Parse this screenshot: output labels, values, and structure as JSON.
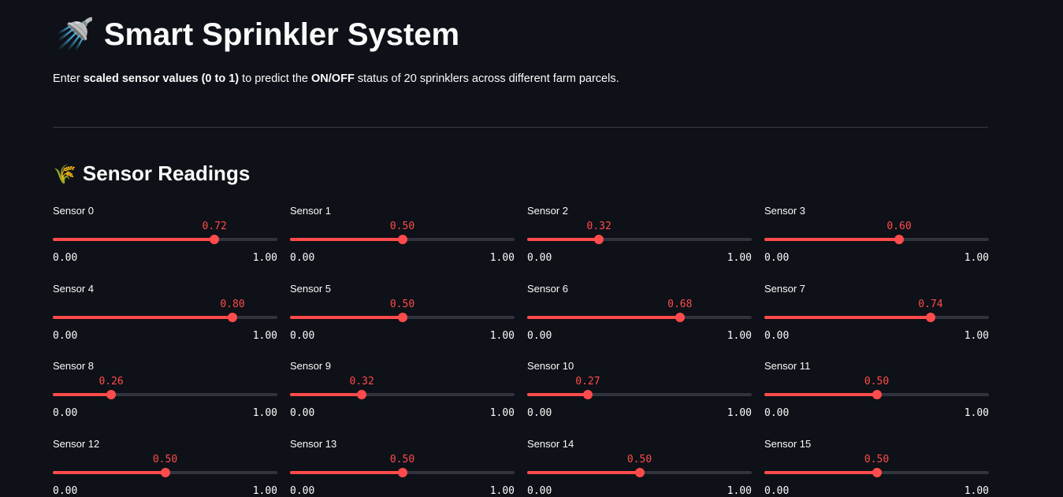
{
  "header": {
    "icon": "🚿",
    "title": "Smart Sprinkler System",
    "description": [
      {
        "text": "Enter ",
        "bold": false
      },
      {
        "text": "scaled sensor values (0 to 1)",
        "bold": true
      },
      {
        "text": " to predict the ",
        "bold": false
      },
      {
        "text": "ON/OFF",
        "bold": true
      },
      {
        "text": " status of 20 sprinklers across different farm parcels.",
        "bold": false
      }
    ]
  },
  "section": {
    "icon": "🌾",
    "title": "Sensor Readings"
  },
  "sliders": [
    {
      "label": "Sensor 0",
      "value": {
        "value": 0.72,
        "label": "0.72"
      },
      "min": {
        "value": 0,
        "label": "0.00"
      },
      "max": {
        "value": 1,
        "label": "1.00"
      }
    },
    {
      "label": "Sensor 1",
      "value": {
        "value": 0.5,
        "label": "0.50"
      },
      "min": {
        "value": 0,
        "label": "0.00"
      },
      "max": {
        "value": 1,
        "label": "1.00"
      }
    },
    {
      "label": "Sensor 2",
      "value": {
        "value": 0.32,
        "label": "0.32"
      },
      "min": {
        "value": 0,
        "label": "0.00"
      },
      "max": {
        "value": 1,
        "label": "1.00"
      }
    },
    {
      "label": "Sensor 3",
      "value": {
        "value": 0.6,
        "label": "0.60"
      },
      "min": {
        "value": 0,
        "label": "0.00"
      },
      "max": {
        "value": 1,
        "label": "1.00"
      }
    },
    {
      "label": "Sensor 4",
      "value": {
        "value": 0.8,
        "label": "0.80"
      },
      "min": {
        "value": 0,
        "label": "0.00"
      },
      "max": {
        "value": 1,
        "label": "1.00"
      }
    },
    {
      "label": "Sensor 5",
      "value": {
        "value": 0.5,
        "label": "0.50"
      },
      "min": {
        "value": 0,
        "label": "0.00"
      },
      "max": {
        "value": 1,
        "label": "1.00"
      }
    },
    {
      "label": "Sensor 6",
      "value": {
        "value": 0.68,
        "label": "0.68"
      },
      "min": {
        "value": 0,
        "label": "0.00"
      },
      "max": {
        "value": 1,
        "label": "1.00"
      }
    },
    {
      "label": "Sensor 7",
      "value": {
        "value": 0.74,
        "label": "0.74"
      },
      "min": {
        "value": 0,
        "label": "0.00"
      },
      "max": {
        "value": 1,
        "label": "1.00"
      }
    },
    {
      "label": "Sensor 8",
      "value": {
        "value": 0.26,
        "label": "0.26"
      },
      "min": {
        "value": 0,
        "label": "0.00"
      },
      "max": {
        "value": 1,
        "label": "1.00"
      }
    },
    {
      "label": "Sensor 9",
      "value": {
        "value": 0.32,
        "label": "0.32"
      },
      "min": {
        "value": 0,
        "label": "0.00"
      },
      "max": {
        "value": 1,
        "label": "1.00"
      }
    },
    {
      "label": "Sensor 10",
      "value": {
        "value": 0.27,
        "label": "0.27"
      },
      "min": {
        "value": 0,
        "label": "0.00"
      },
      "max": {
        "value": 1,
        "label": "1.00"
      }
    },
    {
      "label": "Sensor 11",
      "value": {
        "value": 0.5,
        "label": "0.50"
      },
      "min": {
        "value": 0,
        "label": "0.00"
      },
      "max": {
        "value": 1,
        "label": "1.00"
      }
    },
    {
      "label": "Sensor 12",
      "value": {
        "value": 0.5,
        "label": "0.50"
      },
      "min": {
        "value": 0,
        "label": "0.00"
      },
      "max": {
        "value": 1,
        "label": "1.00"
      }
    },
    {
      "label": "Sensor 13",
      "value": {
        "value": 0.5,
        "label": "0.50"
      },
      "min": {
        "value": 0,
        "label": "0.00"
      },
      "max": {
        "value": 1,
        "label": "1.00"
      }
    },
    {
      "label": "Sensor 14",
      "value": {
        "value": 0.5,
        "label": "0.50"
      },
      "min": {
        "value": 0,
        "label": "0.00"
      },
      "max": {
        "value": 1,
        "label": "1.00"
      }
    },
    {
      "label": "Sensor 15",
      "value": {
        "value": 0.5,
        "label": "0.50"
      },
      "min": {
        "value": 0,
        "label": "0.00"
      },
      "max": {
        "value": 1,
        "label": "1.00"
      }
    }
  ]
}
